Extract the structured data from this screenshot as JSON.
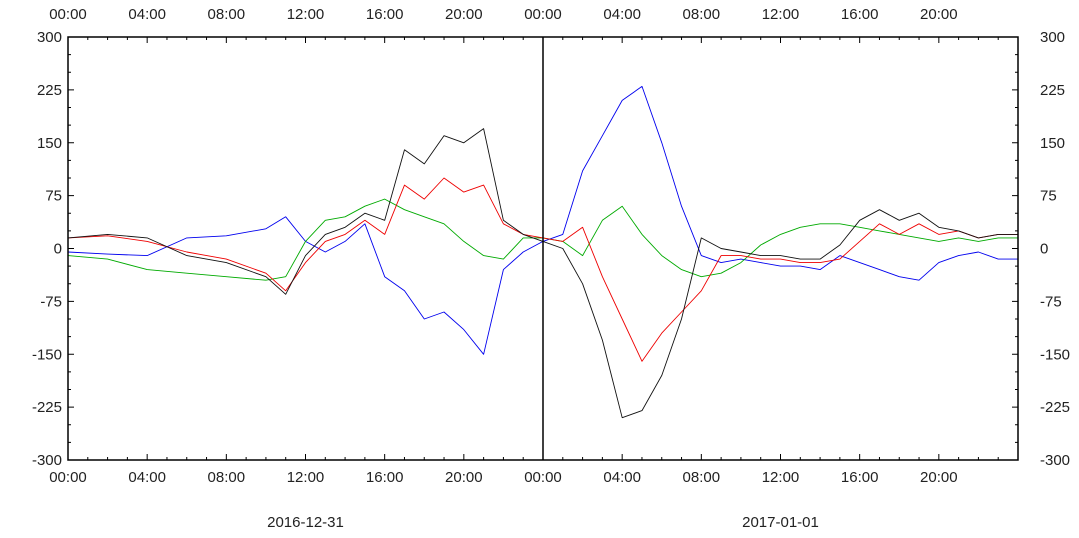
{
  "chart_data": {
    "type": "line",
    "title": "",
    "xlabel": "",
    "ylabel": "",
    "ylim": [
      -300,
      300
    ],
    "xlim_hours": [
      0,
      48
    ],
    "grid": false,
    "y_ticks": [
      300,
      225,
      150,
      75,
      0,
      -75,
      -150,
      -225,
      -300
    ],
    "y_tick_labels": [
      "300",
      "225",
      "150",
      "75",
      "0",
      "-75",
      "-150",
      "-225",
      "-300"
    ],
    "x_ticks": [
      0,
      4,
      8,
      12,
      16,
      20,
      24,
      28,
      32,
      36,
      40,
      44
    ],
    "x_tick_labels": [
      "00:00",
      "04:00",
      "08:00",
      "12:00",
      "16:00",
      "20:00",
      "00:00",
      "04:00",
      "08:00",
      "12:00",
      "16:00",
      "20:00"
    ],
    "date_labels": [
      {
        "text": "2016-12-31",
        "at_hour": 12
      },
      {
        "text": "2017-01-01",
        "at_hour": 36
      }
    ],
    "separator_hour": 24,
    "series": [
      {
        "color": "#0000ee",
        "x": [
          0,
          2,
          4,
          6,
          8,
          10,
          11,
          12,
          13,
          14,
          15,
          16,
          17,
          18,
          19,
          20,
          21,
          22,
          23,
          24,
          25,
          26,
          27,
          28,
          29,
          30,
          31,
          32,
          33,
          34,
          35,
          36,
          37,
          38,
          39,
          40,
          41,
          42,
          43,
          44,
          45,
          46,
          47,
          48
        ],
        "y": [
          -5,
          -8,
          -10,
          15,
          18,
          28,
          45,
          10,
          -5,
          10,
          35,
          -40,
          -60,
          -100,
          -90,
          -115,
          -150,
          -30,
          -5,
          10,
          20,
          110,
          160,
          210,
          230,
          150,
          60,
          -10,
          -20,
          -15,
          -20,
          -25,
          -25,
          -30,
          -10,
          -20,
          -30,
          -40,
          -45,
          -20,
          -10,
          -5,
          -15,
          -15
        ]
      },
      {
        "color": "#00aa00",
        "x": [
          0,
          2,
          4,
          6,
          8,
          10,
          11,
          12,
          13,
          14,
          15,
          16,
          17,
          18,
          19,
          20,
          21,
          22,
          23,
          24,
          25,
          26,
          27,
          28,
          29,
          30,
          31,
          32,
          33,
          34,
          35,
          36,
          37,
          38,
          39,
          40,
          41,
          42,
          43,
          44,
          45,
          46,
          47,
          48
        ],
        "y": [
          -10,
          -15,
          -30,
          -35,
          -40,
          -45,
          -40,
          10,
          40,
          45,
          60,
          70,
          55,
          45,
          35,
          10,
          -10,
          -15,
          15,
          15,
          10,
          -10,
          40,
          60,
          20,
          -10,
          -30,
          -40,
          -35,
          -20,
          5,
          20,
          30,
          35,
          35,
          30,
          25,
          20,
          15,
          10,
          15,
          10,
          15,
          15
        ]
      },
      {
        "color": "#ee0000",
        "x": [
          0,
          2,
          4,
          6,
          8,
          10,
          11,
          12,
          13,
          14,
          15,
          16,
          17,
          18,
          19,
          20,
          21,
          22,
          23,
          24,
          25,
          26,
          27,
          28,
          29,
          30,
          31,
          32,
          33,
          34,
          35,
          36,
          37,
          38,
          39,
          40,
          41,
          42,
          43,
          44,
          45,
          46,
          47,
          48
        ],
        "y": [
          15,
          18,
          10,
          -5,
          -15,
          -35,
          -60,
          -20,
          10,
          20,
          40,
          20,
          90,
          70,
          100,
          80,
          90,
          35,
          20,
          15,
          10,
          30,
          -40,
          -100,
          -160,
          -120,
          -90,
          -60,
          -10,
          -10,
          -15,
          -15,
          -20,
          -20,
          -15,
          10,
          35,
          20,
          35,
          20,
          25,
          15,
          20,
          20
        ]
      },
      {
        "color": "#111111",
        "x": [
          0,
          2,
          4,
          6,
          8,
          10,
          11,
          12,
          13,
          14,
          15,
          16,
          17,
          18,
          19,
          20,
          21,
          22,
          23,
          24,
          25,
          26,
          27,
          28,
          29,
          30,
          31,
          32,
          33,
          34,
          35,
          36,
          37,
          38,
          39,
          40,
          41,
          42,
          43,
          44,
          45,
          46,
          47,
          48
        ],
        "y": [
          15,
          20,
          15,
          -10,
          -20,
          -40,
          -65,
          -10,
          20,
          30,
          50,
          40,
          140,
          120,
          160,
          150,
          170,
          40,
          20,
          10,
          0,
          -50,
          -130,
          -240,
          -230,
          -180,
          -100,
          15,
          0,
          -5,
          -10,
          -10,
          -15,
          -15,
          5,
          40,
          55,
          40,
          50,
          30,
          25,
          15,
          20,
          20
        ]
      }
    ]
  }
}
